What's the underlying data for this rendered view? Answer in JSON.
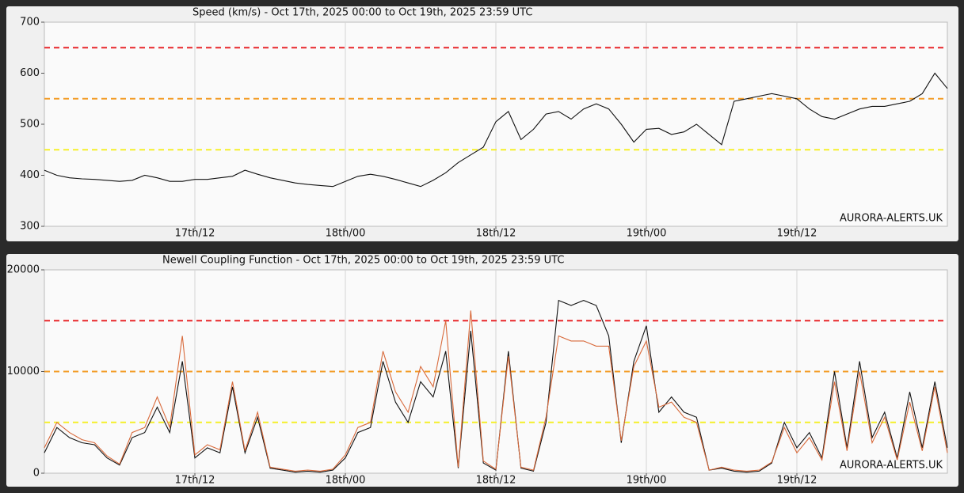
{
  "chart_data": [
    {
      "type": "line",
      "title": "Speed (km/s) - Oct 17th, 2025 00:00 to Oct 19th, 2025 23:59 UTC",
      "watermark": "AURORA-ALERTS.UK",
      "x": [
        0,
        1,
        2,
        3,
        4,
        5,
        6,
        7,
        8,
        9,
        10,
        11,
        12,
        13,
        14,
        15,
        16,
        17,
        18,
        19,
        20,
        21,
        22,
        23,
        24,
        25,
        26,
        27,
        28,
        29,
        30,
        31,
        32,
        33,
        34,
        35,
        36,
        37,
        38,
        39,
        40,
        41,
        42,
        43,
        44,
        45,
        46,
        47,
        48,
        49,
        50,
        51,
        52,
        53,
        54,
        55,
        56,
        57,
        58,
        59,
        60,
        61,
        62,
        63,
        64,
        65,
        66,
        67,
        68,
        69,
        70,
        71,
        72
      ],
      "series": [
        {
          "color": "#111111",
          "values": [
            410,
            400,
            395,
            393,
            392,
            390,
            388,
            390,
            400,
            395,
            388,
            388,
            392,
            392,
            395,
            398,
            410,
            402,
            395,
            390,
            385,
            382,
            380,
            378,
            388,
            398,
            402,
            398,
            392,
            385,
            378,
            390,
            405,
            425,
            440,
            455,
            505,
            525,
            470,
            490,
            520,
            525,
            510,
            530,
            540,
            530,
            500,
            465,
            490,
            492,
            480,
            485,
            500,
            480,
            460,
            545,
            550,
            555,
            560,
            555,
            550,
            530,
            515,
            510,
            520,
            530,
            535,
            535,
            540,
            545,
            560,
            600,
            570
          ]
        }
      ],
      "xlim": [
        0,
        72
      ],
      "xticks": [
        {
          "value": 12,
          "label": "17th/12"
        },
        {
          "value": 24,
          "label": "18th/00"
        },
        {
          "value": 36,
          "label": "18th/12"
        },
        {
          "value": 48,
          "label": "19th/00"
        },
        {
          "value": 60,
          "label": "19th/12"
        }
      ],
      "ylim": [
        300,
        700
      ],
      "yticks": [
        300,
        400,
        500,
        600,
        700
      ],
      "thresholds": [
        {
          "value": 650,
          "color": "#e8262a"
        },
        {
          "value": 550,
          "color": "#f39c27"
        },
        {
          "value": 450,
          "color": "#f5ef2a"
        }
      ],
      "grid": true
    },
    {
      "type": "line",
      "title": "Newell Coupling Function - Oct 17th, 2025 00:00 to Oct 19th, 2025 23:59 UTC",
      "watermark": "AURORA-ALERTS.UK",
      "x": [
        0,
        1,
        2,
        3,
        4,
        5,
        6,
        7,
        8,
        9,
        10,
        11,
        12,
        13,
        14,
        15,
        16,
        17,
        18,
        19,
        20,
        21,
        22,
        23,
        24,
        25,
        26,
        27,
        28,
        29,
        30,
        31,
        32,
        33,
        34,
        35,
        36,
        37,
        38,
        39,
        40,
        41,
        42,
        43,
        44,
        45,
        46,
        47,
        48,
        49,
        50,
        51,
        52,
        53,
        54,
        55,
        56,
        57,
        58,
        59,
        60,
        61,
        62,
        63,
        64,
        65,
        66,
        67,
        68,
        69,
        70,
        71,
        72
      ],
      "series": [
        {
          "color": "#111111",
          "values": [
            2000,
            4500,
            3500,
            3000,
            2800,
            1500,
            800,
            3500,
            4000,
            6500,
            4000,
            11000,
            1500,
            2500,
            2000,
            8500,
            2000,
            5500,
            500,
            300,
            100,
            200,
            100,
            300,
            1500,
            4000,
            4500,
            11000,
            7000,
            5000,
            9000,
            7500,
            12000,
            500,
            14000,
            1000,
            300,
            12000,
            500,
            200,
            5000,
            17000,
            16500,
            17000,
            16500,
            13500,
            3000,
            11000,
            14500,
            6000,
            7500,
            6000,
            5500,
            300,
            500,
            200,
            100,
            200,
            1000,
            5000,
            2500,
            4000,
            1500,
            10000,
            2500,
            11000,
            3500,
            6000,
            1500,
            8000,
            2500,
            9000,
            2500
          ]
        },
        {
          "color": "#d8693a",
          "values": [
            2500,
            5000,
            4000,
            3300,
            3000,
            1700,
            900,
            4000,
            4500,
            7500,
            4500,
            13500,
            1800,
            2800,
            2300,
            9000,
            2200,
            6000,
            600,
            400,
            200,
            300,
            200,
            400,
            1800,
            4500,
            5000,
            12000,
            8000,
            6000,
            10500,
            8500,
            15000,
            600,
            16000,
            1200,
            400,
            11500,
            600,
            300,
            5500,
            13500,
            13000,
            13000,
            12500,
            12500,
            3200,
            10500,
            13000,
            6500,
            7000,
            5500,
            5000,
            300,
            600,
            300,
            200,
            300,
            1100,
            4500,
            2000,
            3500,
            1300,
            9000,
            2200,
            10000,
            3000,
            5500,
            1300,
            7000,
            2200,
            8500,
            2000
          ]
        }
      ],
      "xlim": [
        0,
        72
      ],
      "xticks": [
        {
          "value": 12,
          "label": "17th/12"
        },
        {
          "value": 24,
          "label": "18th/00"
        },
        {
          "value": 36,
          "label": "18th/12"
        },
        {
          "value": 48,
          "label": "19th/00"
        },
        {
          "value": 60,
          "label": "19th/12"
        }
      ],
      "ylim": [
        0,
        20000
      ],
      "yticks": [
        0,
        10000,
        20000
      ],
      "thresholds": [
        {
          "value": 15000,
          "color": "#e8262a"
        },
        {
          "value": 10000,
          "color": "#f39c27"
        },
        {
          "value": 5000,
          "color": "#f5ef2a"
        }
      ],
      "grid": true
    }
  ]
}
